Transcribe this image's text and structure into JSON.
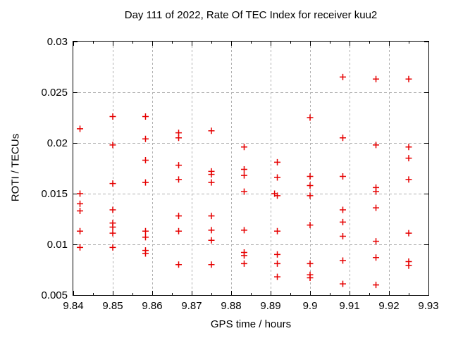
{
  "chart_data": {
    "type": "scatter",
    "title": "Day 111 of 2022, Rate Of TEC Index for receiver kuu2",
    "xlabel": "GPS time / hours",
    "ylabel": "ROTI / TECUs",
    "xlim": [
      9.84,
      9.93
    ],
    "ylim": [
      0.005,
      0.03
    ],
    "xtick_values": [
      9.84,
      9.85,
      9.86,
      9.87,
      9.88,
      9.89,
      9.9,
      9.91,
      9.92,
      9.93
    ],
    "xtick_labels": [
      "9.84",
      "9.85",
      "9.86",
      "9.87",
      "9.88",
      "9.89",
      "9.9",
      "9.91",
      "9.92",
      "9.93"
    ],
    "x_minor_tick_values": [
      9.845,
      9.855,
      9.865,
      9.875,
      9.885,
      9.895,
      9.905,
      9.915,
      9.925
    ],
    "ytick_values": [
      0.005,
      0.01,
      0.015,
      0.02,
      0.025,
      0.03
    ],
    "ytick_labels": [
      "0.005",
      "0.01",
      "0.015",
      "0.02",
      "0.025",
      "0.03"
    ],
    "grid": true,
    "legend_position": "none",
    "marker": "plus",
    "marker_color": "#e60000",
    "grid_color": "#b0b0b0",
    "axis_color": "#000000",
    "series": [
      {
        "name": "ROTI",
        "points": [
          [
            9.8417,
            0.0214
          ],
          [
            9.8417,
            0.015
          ],
          [
            9.8417,
            0.014
          ],
          [
            9.8417,
            0.0133
          ],
          [
            9.8417,
            0.0113
          ],
          [
            9.8417,
            0.0097
          ],
          [
            9.85,
            0.0226
          ],
          [
            9.85,
            0.0198
          ],
          [
            9.85,
            0.016
          ],
          [
            9.85,
            0.0134
          ],
          [
            9.85,
            0.0121
          ],
          [
            9.85,
            0.0117
          ],
          [
            9.85,
            0.0111
          ],
          [
            9.85,
            0.0097
          ],
          [
            9.8583,
            0.0226
          ],
          [
            9.8583,
            0.0204
          ],
          [
            9.8583,
            0.0183
          ],
          [
            9.8583,
            0.0161
          ],
          [
            9.8583,
            0.0113
          ],
          [
            9.8583,
            0.0107
          ],
          [
            9.8583,
            0.0094
          ],
          [
            9.8583,
            0.0091
          ],
          [
            9.8667,
            0.021
          ],
          [
            9.8667,
            0.0205
          ],
          [
            9.8667,
            0.0178
          ],
          [
            9.8667,
            0.0164
          ],
          [
            9.8667,
            0.0128
          ],
          [
            9.8667,
            0.0113
          ],
          [
            9.8667,
            0.008
          ],
          [
            9.875,
            0.0212
          ],
          [
            9.875,
            0.0172
          ],
          [
            9.875,
            0.0169
          ],
          [
            9.875,
            0.0161
          ],
          [
            9.875,
            0.0128
          ],
          [
            9.875,
            0.0114
          ],
          [
            9.875,
            0.0104
          ],
          [
            9.875,
            0.008
          ],
          [
            9.8833,
            0.0196
          ],
          [
            9.8833,
            0.0174
          ],
          [
            9.8833,
            0.0168
          ],
          [
            9.8833,
            0.0152
          ],
          [
            9.8833,
            0.0114
          ],
          [
            9.8833,
            0.0092
          ],
          [
            9.8833,
            0.0089
          ],
          [
            9.8833,
            0.0081
          ],
          [
            9.8917,
            0.0181
          ],
          [
            9.8917,
            0.0166
          ],
          [
            9.891,
            0.015
          ],
          [
            9.8917,
            0.0148
          ],
          [
            9.8917,
            0.0113
          ],
          [
            9.8917,
            0.009
          ],
          [
            9.8917,
            0.0081
          ],
          [
            9.8917,
            0.0068
          ],
          [
            9.9,
            0.0225
          ],
          [
            9.9,
            0.0167
          ],
          [
            9.9,
            0.0158
          ],
          [
            9.9,
            0.0148
          ],
          [
            9.9,
            0.0119
          ],
          [
            9.9,
            0.0081
          ],
          [
            9.9,
            0.007
          ],
          [
            9.9,
            0.0067
          ],
          [
            9.9083,
            0.0265
          ],
          [
            9.9083,
            0.0205
          ],
          [
            9.9083,
            0.0167
          ],
          [
            9.9083,
            0.0134
          ],
          [
            9.9083,
            0.0122
          ],
          [
            9.9083,
            0.0108
          ],
          [
            9.9083,
            0.0084
          ],
          [
            9.9083,
            0.0061
          ],
          [
            9.9167,
            0.0263
          ],
          [
            9.9167,
            0.0198
          ],
          [
            9.9167,
            0.0156
          ],
          [
            9.9167,
            0.0152
          ],
          [
            9.9167,
            0.0136
          ],
          [
            9.9167,
            0.0103
          ],
          [
            9.9167,
            0.0087
          ],
          [
            9.9167,
            0.006
          ],
          [
            9.925,
            0.0263
          ],
          [
            9.925,
            0.0196
          ],
          [
            9.925,
            0.0185
          ],
          [
            9.925,
            0.0164
          ],
          [
            9.925,
            0.0111
          ],
          [
            9.925,
            0.0083
          ],
          [
            9.925,
            0.0079
          ]
        ]
      }
    ]
  }
}
